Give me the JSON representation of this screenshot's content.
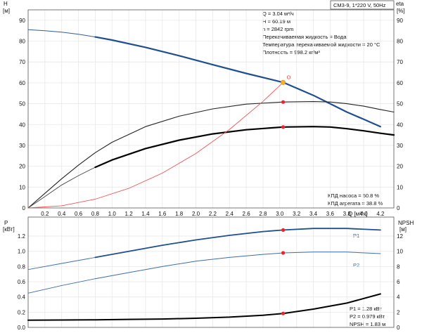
{
  "chart_data": [
    {
      "type": "line",
      "name": "pump-curve-panel",
      "title_box": "CM3-9, 1*220 V, 50Hz",
      "y_left_unit_symbol": "H",
      "y_left_unit": "[м]",
      "y_right_unit_symbol": "eta",
      "y_right_unit": "[%]",
      "x_unit": "Q [м³/ч]",
      "xlim": [
        0,
        4.36
      ],
      "ylim": [
        0,
        95
      ],
      "x_ticks": [
        0.2,
        0.4,
        0.6,
        0.8,
        1.0,
        1.2,
        1.4,
        1.6,
        1.8,
        2.0,
        2.2,
        2.4,
        2.6,
        2.8,
        3.0,
        3.2,
        3.4,
        3.6,
        3.8,
        4.0,
        4.2
      ],
      "x_tick_labels": [
        "0.2",
        "0.4",
        "0.6",
        "0.8",
        "1.0",
        "1.2",
        "1.4",
        "1.6",
        "1.8",
        "2.0",
        "2.2",
        "2.4",
        "2.6",
        "2.8",
        "3.0",
        "3.2",
        "3.4",
        "3.6",
        "3.8",
        "4.0",
        "4.2"
      ],
      "y_ticks": [
        10,
        20,
        30,
        40,
        50,
        60,
        70,
        80,
        90
      ],
      "y_tick_labels_left": [
        "10",
        "20",
        "30",
        "40",
        "50",
        "60",
        "70",
        "80",
        "90"
      ],
      "y_tick_labels_right": [
        "10",
        "20",
        "30",
        "40",
        "50",
        "60",
        "70",
        "80",
        "90"
      ],
      "y_zero_label": "0",
      "info_lines": [
        "Q = 3.04 м³/ч",
        "H = 60.19 м",
        "n = 2842 rpm",
        "Перекачиваемая жидкость = Вода",
        "Температура перекачиваемой жидкости = 20 °C",
        "Плотность = 998.2 кг/м³"
      ],
      "efficiency_lines": [
        "КПД насоса = 50.8 %",
        "КПД агрегата = 38.8 %"
      ],
      "duty_point_label": "O",
      "duty_point": {
        "x": 3.04,
        "y": 60.19
      },
      "marker_points": [
        {
          "x": 3.04,
          "y": 50.8
        },
        {
          "x": 3.04,
          "y": 38.8
        }
      ],
      "series": [
        {
          "role": "head-thin",
          "color": "#2f5f98",
          "width": 1.0,
          "x": [
            0.0,
            0.2,
            0.4,
            0.6,
            0.8
          ],
          "y": [
            85.5,
            85.0,
            84.3,
            83.3,
            82.0
          ]
        },
        {
          "role": "head-bold",
          "color": "#1f4f8f",
          "width": 2.2,
          "x": [
            0.8,
            1.0,
            1.4,
            1.8,
            2.2,
            2.6,
            3.04,
            3.4,
            3.6,
            3.8,
            4.0,
            4.2
          ],
          "y": [
            82.0,
            80.5,
            77.0,
            73.0,
            68.7,
            64.5,
            60.19,
            54.0,
            50.0,
            46.0,
            42.5,
            39.0
          ]
        },
        {
          "role": "eta-pump",
          "color": "#222222",
          "width": 1.1,
          "x": [
            0.0,
            0.2,
            0.4,
            0.6,
            0.8,
            1.0,
            1.4,
            1.8,
            2.2,
            2.6,
            3.04,
            3.4,
            3.6,
            3.8,
            4.0,
            4.2,
            4.36
          ],
          "y": [
            0.0,
            7.0,
            14.0,
            20.5,
            26.5,
            31.5,
            39.0,
            44.0,
            47.5,
            49.8,
            50.8,
            51.0,
            50.8,
            50.0,
            48.8,
            47.2,
            46.0
          ]
        },
        {
          "role": "eta-unit-thin",
          "color": "#444444",
          "width": 0.9,
          "x": [
            0.0,
            0.2,
            0.4,
            0.6,
            0.8
          ],
          "y": [
            0.0,
            5.5,
            11.0,
            15.5,
            19.5
          ]
        },
        {
          "role": "eta-unit-bold",
          "color": "#000000",
          "width": 2.2,
          "x": [
            0.8,
            1.0,
            1.4,
            1.8,
            2.2,
            2.6,
            3.04,
            3.4,
            3.6,
            3.8,
            4.0,
            4.2,
            4.36
          ],
          "y": [
            19.5,
            23.0,
            28.5,
            32.5,
            35.5,
            37.5,
            38.8,
            39.0,
            38.8,
            38.0,
            37.0,
            35.8,
            35.0
          ]
        },
        {
          "role": "system-curve",
          "color": "#ee5555",
          "width": 0.9,
          "x": [
            0.0,
            0.4,
            0.8,
            1.2,
            1.6,
            2.0,
            2.4,
            2.8,
            3.04
          ],
          "y": [
            0.0,
            1.05,
            4.2,
            9.4,
            16.7,
            26.1,
            37.6,
            51.1,
            60.19
          ]
        }
      ]
    },
    {
      "type": "line",
      "name": "power-npsh-panel",
      "y_left_unit_symbol": "P",
      "y_left_unit": "[кВт]",
      "y_right_unit_symbol": "NPSH",
      "y_right_unit": "[м]",
      "xlim": [
        0,
        4.36
      ],
      "ylim": [
        0,
        1.45
      ],
      "y_ticks": [
        0.2,
        0.4,
        0.6,
        0.8,
        1.0,
        1.2
      ],
      "y_tick_labels_left": [
        "0.2",
        "0.4",
        "0.6",
        "0.8",
        "1.0",
        "1.2"
      ],
      "y_zero_label": "0.0",
      "y_right_ticks": [
        2,
        4,
        6,
        8,
        10,
        12
      ],
      "y_tick_labels_right": [
        "2",
        "4",
        "6",
        "8",
        "10",
        "12"
      ],
      "y_right_zero_label": "0",
      "y_right_max": 14.5,
      "series_labels": [
        "P1",
        "P2"
      ],
      "result_lines": [
        "P1 = 1.28 кВт",
        "P2 = 0.979 кВт",
        "NPSH = 1.83 м"
      ],
      "marker_points": [
        {
          "x": 3.04,
          "y": 1.28
        },
        {
          "x": 3.04,
          "y": 0.979
        },
        {
          "x": 3.04,
          "y": 0.183
        }
      ],
      "series": [
        {
          "role": "P1-thin",
          "color": "#3a6ea8",
          "width": 0.9,
          "x": [
            0.0,
            0.4,
            0.8
          ],
          "y": [
            0.76,
            0.84,
            0.92
          ]
        },
        {
          "role": "P1-bold",
          "color": "#1f4f8f",
          "width": 1.8,
          "x": [
            0.8,
            1.2,
            1.6,
            2.0,
            2.4,
            2.8,
            3.04,
            3.4,
            3.8,
            4.2
          ],
          "y": [
            0.92,
            1.0,
            1.08,
            1.15,
            1.21,
            1.26,
            1.28,
            1.3,
            1.3,
            1.28
          ]
        },
        {
          "role": "P2-thin",
          "color": "#3a6ea8",
          "width": 0.9,
          "x": [
            0.0,
            0.4,
            0.8
          ],
          "y": [
            0.45,
            0.55,
            0.64
          ]
        },
        {
          "role": "P2-bold",
          "color": "#3a6ea8",
          "width": 1.0,
          "x": [
            0.8,
            1.2,
            1.6,
            2.0,
            2.4,
            2.8,
            3.04,
            3.4,
            3.8,
            4.2
          ],
          "y": [
            0.64,
            0.72,
            0.8,
            0.87,
            0.92,
            0.96,
            0.979,
            0.99,
            0.99,
            0.97
          ]
        },
        {
          "role": "NPSH",
          "color": "#000000",
          "width": 2.0,
          "x": [
            0.0,
            0.4,
            0.8,
            1.2,
            1.6,
            2.0,
            2.4,
            2.8,
            3.04,
            3.4,
            3.8,
            4.2
          ],
          "y": [
            0.095,
            0.097,
            0.1,
            0.105,
            0.11,
            0.12,
            0.135,
            0.16,
            0.183,
            0.24,
            0.32,
            0.44
          ]
        }
      ]
    }
  ]
}
